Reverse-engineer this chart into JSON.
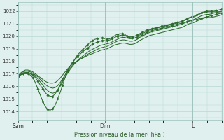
{
  "bg_color": "#dff0ee",
  "grid_color": "#b8d8d4",
  "line_color": "#2d6a2d",
  "xlabel": "Pression niveau de la mer( hPa )",
  "xlabel_color": "#2a5a2a",
  "xtick_labels": [
    "Sam",
    "Dim",
    "L"
  ],
  "xtick_positions": [
    0,
    36,
    72
  ],
  "ylim": [
    1013.3,
    1022.7
  ],
  "yticks": [
    1014,
    1015,
    1016,
    1017,
    1018,
    1019,
    1020,
    1021,
    1022
  ],
  "total_steps": 84,
  "series": [
    {
      "y": [
        1016.8,
        1016.9,
        1017.0,
        1017.0,
        1017.0,
        1016.9,
        1016.7,
        1016.3,
        1015.8,
        1015.3,
        1014.8,
        1014.4,
        1014.15,
        1014.1,
        1014.2,
        1014.5,
        1015.0,
        1015.5,
        1016.1,
        1016.7,
        1017.2,
        1017.6,
        1017.9,
        1018.2,
        1018.5,
        1018.7,
        1018.9,
        1019.1,
        1019.3,
        1019.5,
        1019.65,
        1019.75,
        1019.8,
        1019.85,
        1019.85,
        1019.8,
        1019.75,
        1019.8,
        1019.9,
        1020.05,
        1020.15,
        1020.2,
        1020.2,
        1020.15,
        1020.0,
        1019.9,
        1019.85,
        1019.85,
        1019.9,
        1020.0,
        1020.1,
        1020.2,
        1020.3,
        1020.4,
        1020.45,
        1020.5,
        1020.55,
        1020.6,
        1020.65,
        1020.7,
        1020.75,
        1020.8,
        1020.85,
        1020.9,
        1020.95,
        1021.0,
        1021.05,
        1021.1,
        1021.15,
        1021.2,
        1021.25,
        1021.3,
        1021.35,
        1021.4,
        1021.45,
        1021.5,
        1021.55,
        1021.6,
        1021.65,
        1021.7,
        1021.75,
        1021.8,
        1021.85
      ],
      "marker": true,
      "markevery": 2
    },
    {
      "y": [
        1016.8,
        1016.9,
        1017.0,
        1017.1,
        1017.1,
        1017.0,
        1016.9,
        1016.7,
        1016.4,
        1016.1,
        1015.8,
        1015.5,
        1015.3,
        1015.2,
        1015.2,
        1015.4,
        1015.7,
        1016.1,
        1016.5,
        1016.9,
        1017.3,
        1017.6,
        1017.9,
        1018.15,
        1018.35,
        1018.55,
        1018.75,
        1018.9,
        1019.05,
        1019.2,
        1019.35,
        1019.45,
        1019.55,
        1019.6,
        1019.65,
        1019.65,
        1019.65,
        1019.7,
        1019.8,
        1019.9,
        1020.0,
        1020.05,
        1020.1,
        1020.05,
        1020.0,
        1019.95,
        1019.95,
        1020.0,
        1020.1,
        1020.2,
        1020.3,
        1020.4,
        1020.5,
        1020.55,
        1020.6,
        1020.65,
        1020.7,
        1020.75,
        1020.8,
        1020.85,
        1020.9,
        1020.95,
        1021.0,
        1021.05,
        1021.1,
        1021.15,
        1021.2,
        1021.3,
        1021.4,
        1021.5,
        1021.55,
        1021.6,
        1021.7,
        1021.8,
        1021.9,
        1021.95,
        1022.0,
        1022.0,
        1022.0,
        1022.0,
        1022.05,
        1022.1,
        1022.15
      ],
      "marker": true,
      "markevery": 2
    },
    {
      "y": [
        1016.8,
        1016.95,
        1017.05,
        1017.1,
        1017.1,
        1017.05,
        1016.95,
        1016.8,
        1016.6,
        1016.35,
        1016.1,
        1015.85,
        1015.65,
        1015.5,
        1015.45,
        1015.5,
        1015.7,
        1016.0,
        1016.35,
        1016.7,
        1017.05,
        1017.35,
        1017.6,
        1017.85,
        1018.05,
        1018.25,
        1018.4,
        1018.55,
        1018.7,
        1018.85,
        1018.95,
        1019.05,
        1019.15,
        1019.25,
        1019.3,
        1019.35,
        1019.4,
        1019.45,
        1019.55,
        1019.65,
        1019.75,
        1019.85,
        1019.9,
        1019.9,
        1019.85,
        1019.8,
        1019.8,
        1019.85,
        1019.95,
        1020.1,
        1020.2,
        1020.3,
        1020.4,
        1020.5,
        1020.55,
        1020.6,
        1020.65,
        1020.7,
        1020.75,
        1020.8,
        1020.85,
        1020.9,
        1020.95,
        1021.0,
        1021.05,
        1021.1,
        1021.15,
        1021.25,
        1021.35,
        1021.45,
        1021.5,
        1021.55,
        1021.65,
        1021.75,
        1021.85,
        1021.9,
        1021.95,
        1021.95,
        1021.95,
        1021.95,
        1021.95,
        1021.95,
        1021.95
      ],
      "marker": false,
      "markevery": 3
    },
    {
      "y": [
        1016.8,
        1017.0,
        1017.15,
        1017.2,
        1017.2,
        1017.15,
        1017.05,
        1016.9,
        1016.75,
        1016.55,
        1016.35,
        1016.15,
        1016.0,
        1015.9,
        1015.85,
        1015.9,
        1016.05,
        1016.3,
        1016.6,
        1016.9,
        1017.2,
        1017.45,
        1017.65,
        1017.85,
        1018.0,
        1018.15,
        1018.3,
        1018.4,
        1018.55,
        1018.65,
        1018.75,
        1018.85,
        1018.95,
        1019.05,
        1019.1,
        1019.15,
        1019.2,
        1019.3,
        1019.4,
        1019.5,
        1019.6,
        1019.65,
        1019.7,
        1019.7,
        1019.65,
        1019.6,
        1019.6,
        1019.65,
        1019.75,
        1019.9,
        1020.0,
        1020.1,
        1020.2,
        1020.3,
        1020.35,
        1020.4,
        1020.45,
        1020.5,
        1020.55,
        1020.6,
        1020.65,
        1020.7,
        1020.75,
        1020.8,
        1020.85,
        1020.9,
        1020.95,
        1021.05,
        1021.15,
        1021.25,
        1021.3,
        1021.35,
        1021.45,
        1021.55,
        1021.65,
        1021.7,
        1021.75,
        1021.75,
        1021.8,
        1021.85,
        1021.9,
        1021.95,
        1022.0
      ],
      "marker": false,
      "markevery": 3
    },
    {
      "y": [
        1016.8,
        1017.05,
        1017.2,
        1017.3,
        1017.3,
        1017.25,
        1017.15,
        1017.0,
        1016.85,
        1016.7,
        1016.55,
        1016.4,
        1016.3,
        1016.25,
        1016.25,
        1016.3,
        1016.45,
        1016.65,
        1016.9,
        1017.15,
        1017.4,
        1017.6,
        1017.75,
        1017.9,
        1018.05,
        1018.15,
        1018.25,
        1018.35,
        1018.45,
        1018.55,
        1018.6,
        1018.7,
        1018.75,
        1018.85,
        1018.9,
        1018.95,
        1019.0,
        1019.1,
        1019.2,
        1019.3,
        1019.35,
        1019.4,
        1019.45,
        1019.45,
        1019.4,
        1019.35,
        1019.35,
        1019.4,
        1019.5,
        1019.65,
        1019.75,
        1019.85,
        1019.95,
        1020.05,
        1020.1,
        1020.15,
        1020.2,
        1020.25,
        1020.3,
        1020.35,
        1020.4,
        1020.45,
        1020.5,
        1020.55,
        1020.6,
        1020.65,
        1020.7,
        1020.8,
        1020.9,
        1021.0,
        1021.05,
        1021.1,
        1021.2,
        1021.3,
        1021.4,
        1021.45,
        1021.5,
        1021.5,
        1021.5,
        1021.55,
        1021.6,
        1021.65,
        1021.7
      ],
      "marker": false,
      "markevery": 3
    }
  ]
}
